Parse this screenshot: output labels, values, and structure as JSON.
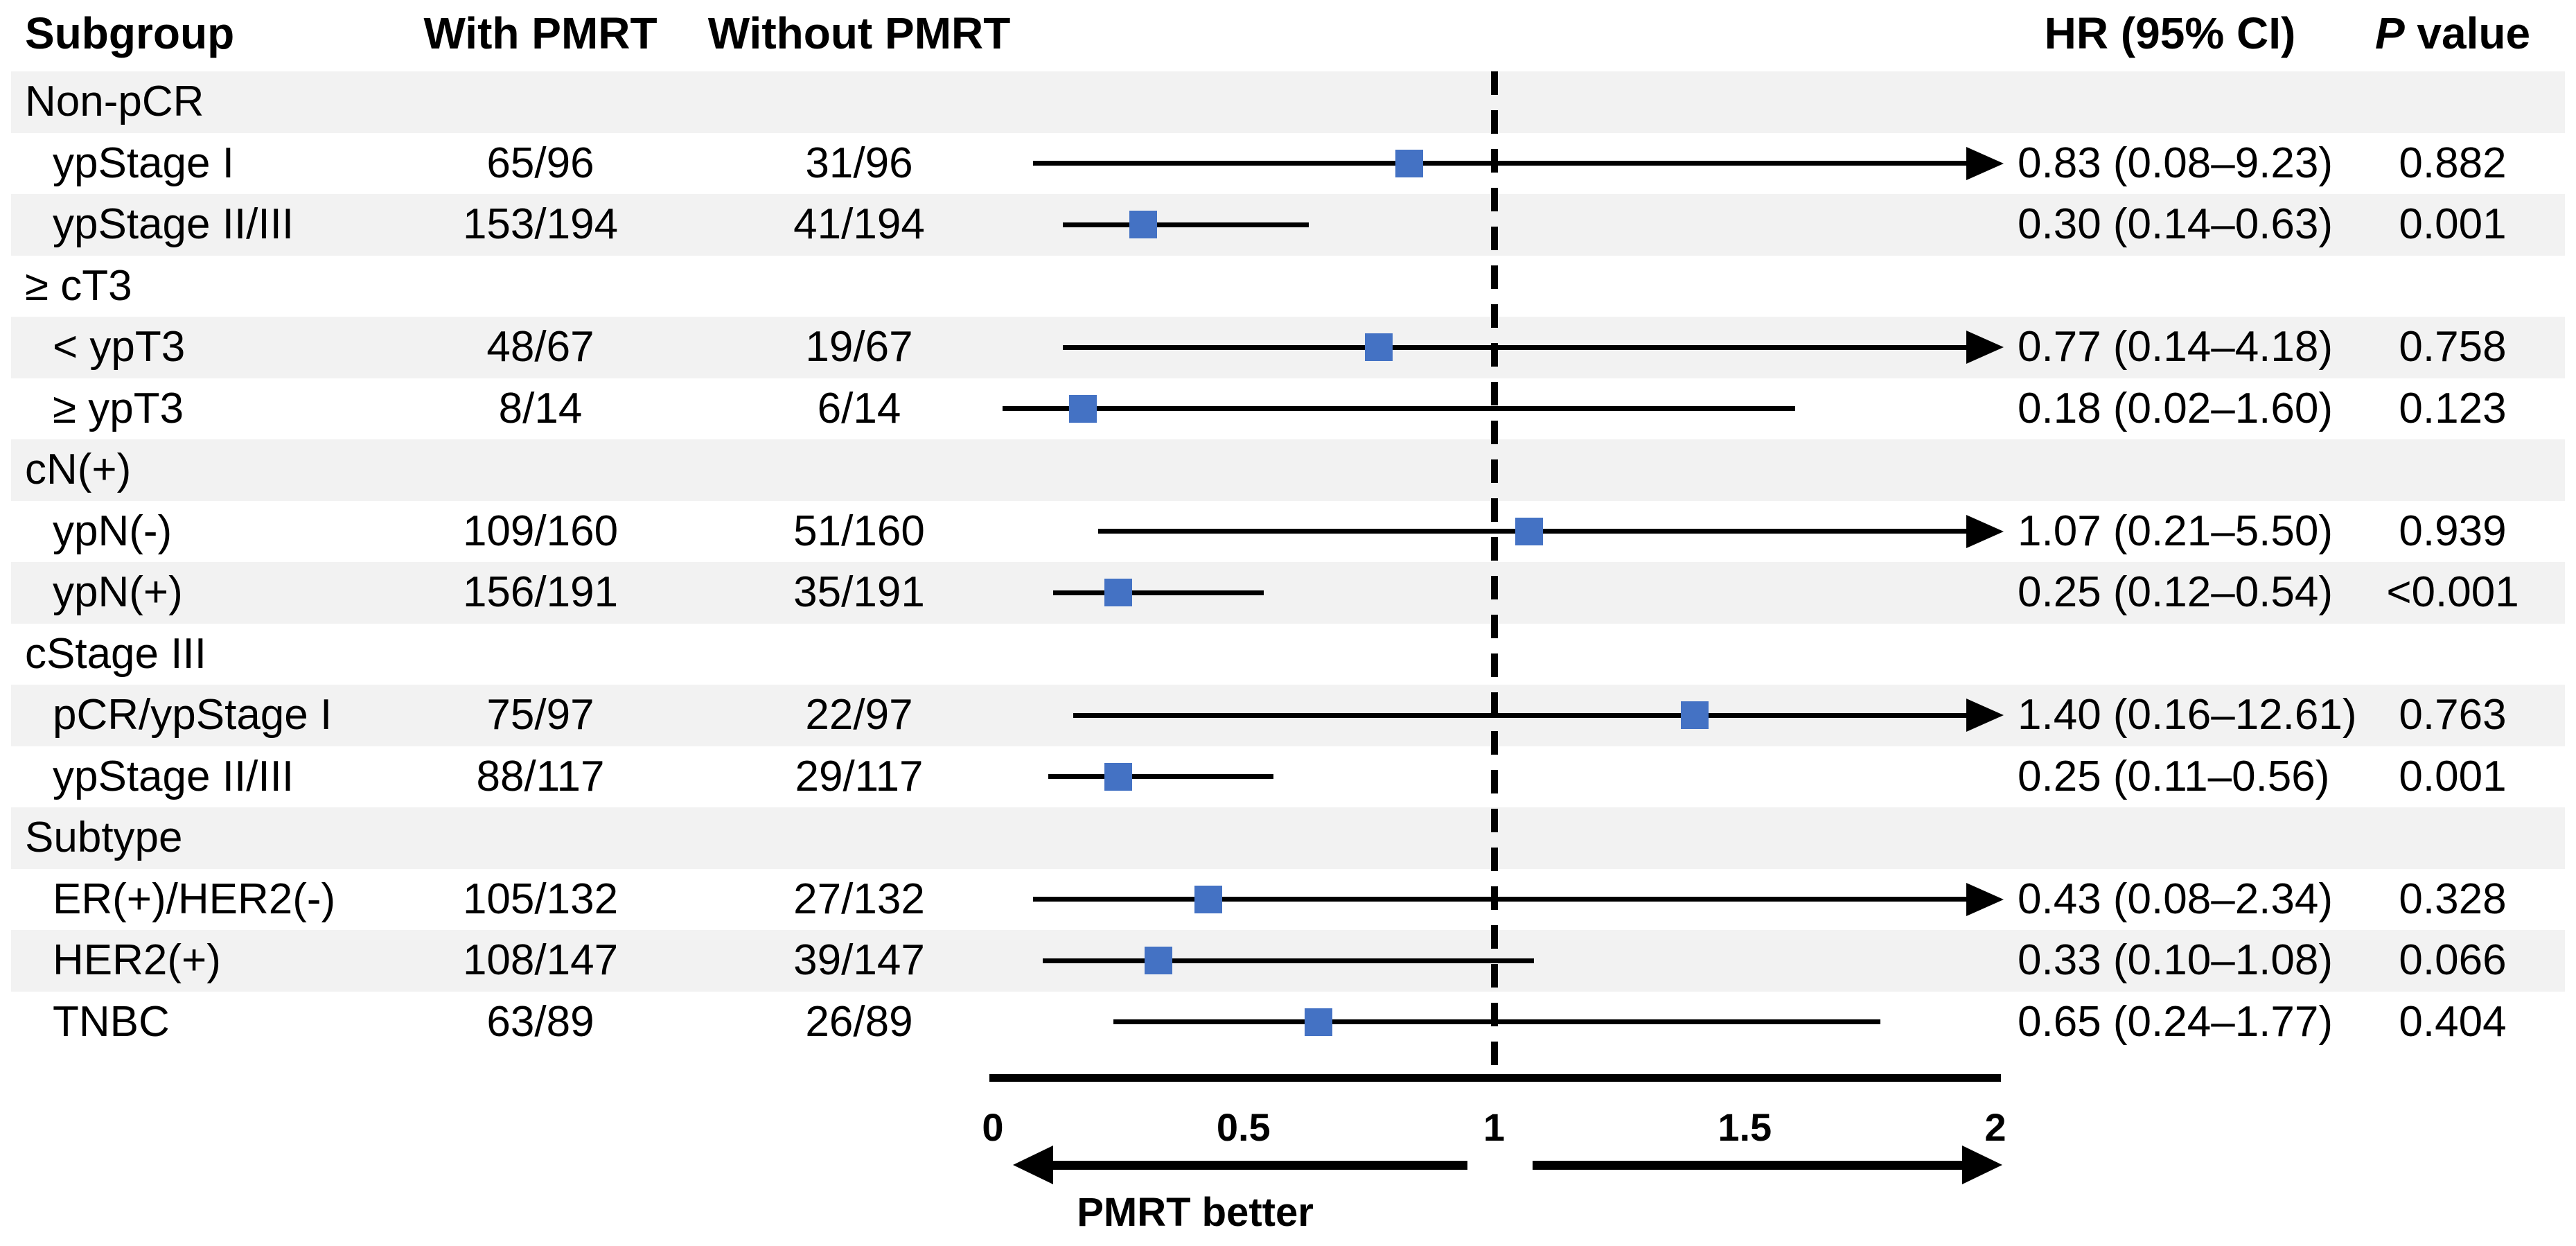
{
  "chart_data": {
    "type": "forest",
    "columns": {
      "subgroup": "Subgroup",
      "with_pmrt": "With PMRT",
      "without_pmrt": "Without PMRT",
      "hr_ci": "HR (95% CI)",
      "p_italic": "P",
      "p_rest": " value"
    },
    "axis": {
      "min": 0,
      "max": 2,
      "reference": 1,
      "ticks": [
        {
          "value": 0,
          "label": "0"
        },
        {
          "value": 0.5,
          "label": "0.5"
        },
        {
          "value": 1,
          "label": "1"
        },
        {
          "value": 1.5,
          "label": "1.5"
        },
        {
          "value": 2,
          "label": "2"
        }
      ],
      "direction_label": "PMRT better"
    },
    "rows": [
      {
        "kind": "group",
        "label": "Non-pCR"
      },
      {
        "kind": "data",
        "label": "ypStage I",
        "with_pmrt": "65/96",
        "without_pmrt": "31/96",
        "hr": 0.83,
        "ci_low": 0.08,
        "ci_high": 9.23,
        "hr_ci_text": "0.83 (0.08–9.23)",
        "p_value": "0.882"
      },
      {
        "kind": "data",
        "label": "ypStage II/III",
        "with_pmrt": "153/194",
        "without_pmrt": "41/194",
        "hr": 0.3,
        "ci_low": 0.14,
        "ci_high": 0.63,
        "hr_ci_text": "0.30 (0.14–0.63)",
        "p_value": "0.001"
      },
      {
        "kind": "group",
        "label": "≥ cT3"
      },
      {
        "kind": "data",
        "label": "< ypT3",
        "with_pmrt": "48/67",
        "without_pmrt": "19/67",
        "hr": 0.77,
        "ci_low": 0.14,
        "ci_high": 4.18,
        "hr_ci_text": "0.77 (0.14–4.18)",
        "p_value": "0.758"
      },
      {
        "kind": "data",
        "label": "≥ ypT3",
        "with_pmrt": "8/14",
        "without_pmrt": "6/14",
        "hr": 0.18,
        "ci_low": 0.02,
        "ci_high": 1.6,
        "hr_ci_text": "0.18 (0.02–1.60)",
        "p_value": "0.123"
      },
      {
        "kind": "group",
        "label": "cN(+)"
      },
      {
        "kind": "data",
        "label": "ypN(-)",
        "with_pmrt": "109/160",
        "without_pmrt": "51/160",
        "hr": 1.07,
        "ci_low": 0.21,
        "ci_high": 5.5,
        "hr_ci_text": "1.07 (0.21–5.50)",
        "p_value": "0.939"
      },
      {
        "kind": "data",
        "label": "ypN(+)",
        "with_pmrt": "156/191",
        "without_pmrt": "35/191",
        "hr": 0.25,
        "ci_low": 0.12,
        "ci_high": 0.54,
        "hr_ci_text": "0.25 (0.12–0.54)",
        "p_value": "<0.001"
      },
      {
        "kind": "group",
        "label": "cStage III"
      },
      {
        "kind": "data",
        "label": "pCR/ypStage I",
        "with_pmrt": "75/97",
        "without_pmrt": "22/97",
        "hr": 1.4,
        "ci_low": 0.16,
        "ci_high": 12.61,
        "hr_ci_text": "1.40 (0.16–12.61)",
        "p_value": "0.763"
      },
      {
        "kind": "data",
        "label": "ypStage II/III",
        "with_pmrt": "88/117",
        "without_pmrt": "29/117",
        "hr": 0.25,
        "ci_low": 0.11,
        "ci_high": 0.56,
        "hr_ci_text": "0.25 (0.11–0.56)",
        "p_value": "0.001"
      },
      {
        "kind": "group",
        "label": "Subtype"
      },
      {
        "kind": "data",
        "label": "ER(+)/HER2(-)",
        "with_pmrt": "105/132",
        "without_pmrt": "27/132",
        "hr": 0.43,
        "ci_low": 0.08,
        "ci_high": 2.34,
        "hr_ci_text": "0.43 (0.08–2.34)",
        "p_value": "0.328"
      },
      {
        "kind": "data",
        "label": "HER2(+)",
        "with_pmrt": "108/147",
        "without_pmrt": "39/147",
        "hr": 0.33,
        "ci_low": 0.1,
        "ci_high": 1.08,
        "hr_ci_text": "0.33 (0.10–1.08)",
        "p_value": "0.066"
      },
      {
        "kind": "data",
        "label": "TNBC",
        "with_pmrt": "63/89",
        "without_pmrt": "26/89",
        "hr": 0.65,
        "ci_low": 0.24,
        "ci_high": 1.77,
        "hr_ci_text": "0.65 (0.24–1.77)",
        "p_value": "0.404"
      }
    ],
    "colors": {
      "marker_blue": "#4472C4",
      "band_gray": "#f2f2f2",
      "line_black": "#000000"
    }
  }
}
